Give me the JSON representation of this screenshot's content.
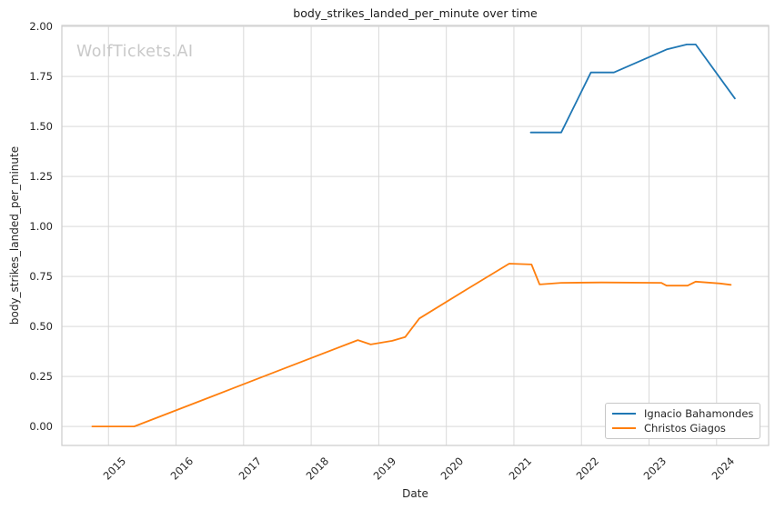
{
  "chart_data": {
    "type": "line",
    "title": "body_strikes_landed_per_minute over time",
    "xlabel": "Date",
    "ylabel": "body_strikes_landed_per_minute",
    "watermark": "WolfTickets.AI",
    "grid": true,
    "legend_position": "lower right",
    "xlim": [
      2014.31,
      2024.77
    ],
    "ylim": [
      -0.095,
      2.005
    ],
    "xticks": [
      "2015",
      "2016",
      "2017",
      "2018",
      "2019",
      "2020",
      "2021",
      "2022",
      "2023",
      "2024"
    ],
    "yticks": [
      "0.00",
      "0.25",
      "0.50",
      "0.75",
      "1.00",
      "1.25",
      "1.50",
      "1.75",
      "2.00"
    ],
    "colors": {
      "grid": "#d9d9d9",
      "spine": "#cccccc",
      "tick_label": "#262626",
      "title": "#1a1a1a",
      "watermark": "#c9c9c9"
    },
    "series": [
      {
        "name": "Ignacio Bahamondes",
        "color": "#1f77b4",
        "x": [
          2021.25,
          2021.7,
          2022.14,
          2022.48,
          2023.26,
          2023.56,
          2023.69,
          2024.27
        ],
        "y": [
          1.47,
          1.47,
          1.77,
          1.77,
          1.885,
          1.91,
          1.91,
          1.64
        ]
      },
      {
        "name": "Christos Giagos",
        "color": "#ff7f0e",
        "x": [
          2014.76,
          2015.38,
          2016.5,
          2017.6,
          2018.69,
          2018.88,
          2019.2,
          2019.39,
          2019.6,
          2020.3,
          2020.93,
          2021.26,
          2021.38,
          2021.7,
          2022.3,
          2023.18,
          2023.26,
          2023.57,
          2023.69,
          2024.05,
          2024.21
        ],
        "y": [
          0.0,
          0.0,
          0.146,
          0.29,
          0.432,
          0.41,
          0.428,
          0.447,
          0.54,
          0.685,
          0.814,
          0.81,
          0.71,
          0.718,
          0.72,
          0.718,
          0.704,
          0.704,
          0.724,
          0.715,
          0.708
        ]
      }
    ]
  }
}
